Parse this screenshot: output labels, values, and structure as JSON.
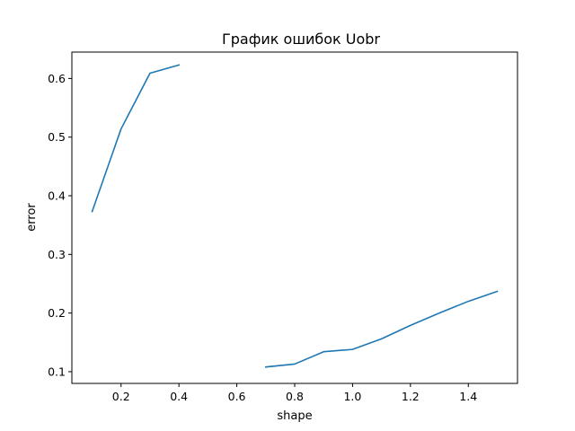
{
  "chart_data": {
    "type": "line",
    "title": "График ошибок Uobr",
    "xlabel": "shape",
    "ylabel": "error",
    "xlim": [
      0.03,
      1.57
    ],
    "ylim": [
      0.08,
      0.645
    ],
    "xticks": [
      0.2,
      0.4,
      0.6,
      0.8,
      1.0,
      1.2,
      1.4
    ],
    "xtick_labels": [
      "0.2",
      "0.4",
      "0.6",
      "0.8",
      "1.0",
      "1.2",
      "1.4"
    ],
    "yticks": [
      0.1,
      0.2,
      0.3,
      0.4,
      0.5,
      0.6
    ],
    "ytick_labels": [
      "0.1",
      "0.2",
      "0.3",
      "0.4",
      "0.5",
      "0.6"
    ],
    "grid": false,
    "legend": "none",
    "line_color": "#1f77b4",
    "series": [
      {
        "points": [
          [
            0.1,
            0.373
          ],
          [
            0.2,
            0.514
          ],
          [
            0.3,
            0.609
          ],
          [
            0.4,
            0.623
          ],
          [
            0.5,
            null
          ],
          [
            0.6,
            null
          ],
          [
            0.7,
            0.108
          ],
          [
            0.8,
            0.113
          ],
          [
            0.9,
            0.134
          ],
          [
            1.0,
            0.138
          ],
          [
            1.1,
            0.156
          ],
          [
            1.2,
            0.179
          ],
          [
            1.3,
            0.2
          ],
          [
            1.4,
            0.22
          ],
          [
            1.5,
            0.237
          ]
        ]
      }
    ]
  }
}
